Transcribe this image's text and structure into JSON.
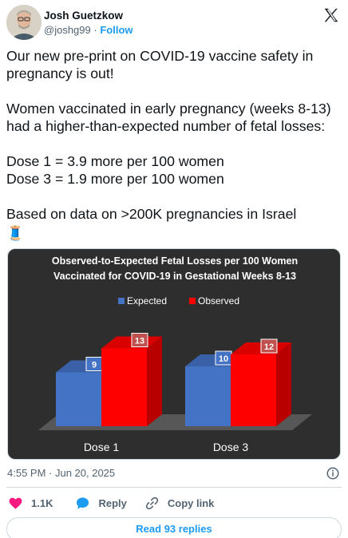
{
  "author": {
    "name": "Josh Guetzkow",
    "handle": "@joshg99",
    "separator": "·",
    "follow_label": "Follow"
  },
  "tweet": {
    "line1": "Our new pre-print on COVID-19 vaccine safety in pregnancy is out!",
    "line2": "Women vaccinated in early pregnancy (weeks 8-13) had a higher-than-expected number of fetal losses:",
    "line3a": "Dose 1 = 3.9 more per 100 women",
    "line3b": "Dose 3 = 1.9 more per 100 women",
    "line4": "Based on data on >200K pregnancies in Israel",
    "emoji": "🧵"
  },
  "chart_data": {
    "type": "bar",
    "title_line1": "Observed-to-Expected Fetal Losses per 100 Women",
    "title_line2": "Vaccinated for COVID-19 in Gestational Weeks 8-13",
    "categories": [
      "Dose 1",
      "Dose 3"
    ],
    "series": [
      {
        "name": "Expected",
        "values": [
          9,
          10
        ],
        "color": "#4472c4"
      },
      {
        "name": "Observed",
        "values": [
          13,
          12
        ],
        "color": "#ff0000"
      }
    ],
    "legend": "top",
    "ylim": [
      0,
      16
    ]
  },
  "meta": {
    "timestamp": "4:55 PM · Jun 20, 2025",
    "likes": "1.1K",
    "reply_label": "Reply",
    "copy_label": "Copy link",
    "read_replies": "Read 93 replies"
  },
  "colors": {
    "accent": "#1d9bf0",
    "like": "#f91880",
    "text": "#0f1419",
    "muted": "#536471"
  }
}
